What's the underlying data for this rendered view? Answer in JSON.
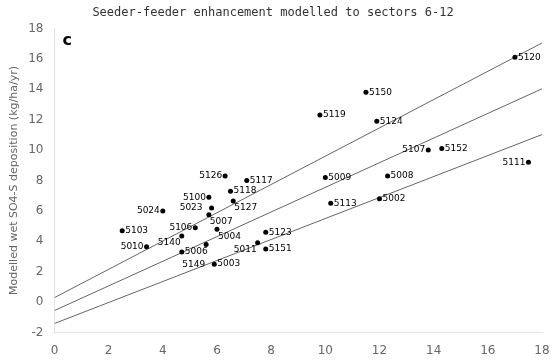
{
  "chart_data": {
    "type": "scatter",
    "title": "Seeder-feeder enhancement modelled to sectors 6-12",
    "ylabel": "Modelled wet SO4-S deposition (kg/ha/yr)",
    "annotations": [
      "c"
    ],
    "xlim": [
      0,
      18
    ],
    "ylim": [
      -2,
      18
    ],
    "xticks": [
      0,
      2,
      4,
      6,
      8,
      10,
      12,
      14,
      16,
      18
    ],
    "yticks": [
      -2,
      0,
      2,
      4,
      6,
      8,
      10,
      12,
      14,
      16,
      18
    ],
    "grid": false,
    "series": [
      {
        "type": "scatter",
        "color": "#000000",
        "x": [
          17.0,
          11.5,
          9.8,
          11.9,
          14.3,
          13.8,
          17.5,
          10.0,
          12.3,
          12.0,
          10.2,
          6.3,
          7.1,
          6.5,
          5.7,
          6.6,
          5.8,
          5.7,
          4.0,
          2.5,
          5.2,
          4.7,
          6.0,
          3.4,
          4.7,
          5.6,
          5.9,
          7.8,
          7.5,
          7.8
        ],
        "values": [
          16.1,
          13.8,
          12.3,
          11.9,
          10.1,
          10.0,
          9.2,
          8.2,
          8.3,
          6.8,
          6.5,
          8.3,
          8.0,
          7.3,
          6.9,
          6.65,
          6.2,
          5.75,
          6.0,
          4.7,
          4.9,
          4.35,
          4.8,
          3.65,
          3.3,
          3.8,
          2.5,
          4.6,
          3.9,
          3.5
        ],
        "labels": [
          "5120",
          "5150",
          "5119",
          "5124",
          "5152",
          "5107",
          "5111",
          "5009",
          "5008",
          "5002",
          "5113",
          "5126",
          "5117",
          "5118",
          "5100",
          "5127",
          "5023",
          "5007",
          "5024",
          "5103",
          "5106",
          "5140",
          "5004",
          "5010",
          "5006",
          "5149",
          "5003",
          "5123",
          "5011",
          "5151"
        ]
      },
      {
        "type": "line",
        "color": "#666666",
        "x": [
          0,
          18
        ],
        "values": [
          0.3,
          17.04
        ]
      },
      {
        "type": "line",
        "color": "#666666",
        "x": [
          0,
          18
        ],
        "values": [
          -0.55,
          14.03
        ]
      },
      {
        "type": "line",
        "color": "#666666",
        "x": [
          0,
          18
        ],
        "values": [
          -1.4,
          11.02
        ]
      }
    ]
  }
}
